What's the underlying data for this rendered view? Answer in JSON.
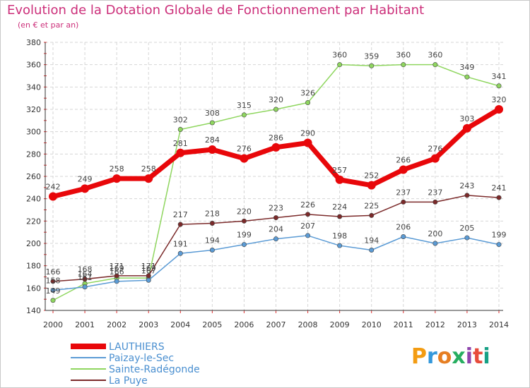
{
  "header": {
    "title": "Evolution de la Dotation Globale de Fonctionnement par Habitant",
    "subtitle": "(en € et par an)"
  },
  "logo": {
    "letters": [
      "P",
      "r",
      "o",
      "x",
      "i",
      "t",
      "i"
    ],
    "colors": [
      "#f39c12",
      "#3498db",
      "#e67e22",
      "#27ae60",
      "#8e44ad",
      "#e74c3c",
      "#16a085"
    ]
  },
  "chart_data": {
    "type": "line",
    "x": [
      "2000",
      "2001",
      "2002",
      "2003",
      "2004",
      "2005",
      "2006",
      "2007",
      "2008",
      "2009",
      "2010",
      "2011",
      "2012",
      "2013",
      "2014"
    ],
    "ylim": [
      140,
      380
    ],
    "yticks": [
      140,
      160,
      180,
      200,
      220,
      240,
      260,
      280,
      300,
      320,
      340,
      360,
      380
    ],
    "grid": true,
    "legend": "bottom-left",
    "series": [
      {
        "name": "LAUTHIERS",
        "color": "#e8070a",
        "values": [
          242,
          249,
          258,
          258,
          281,
          284,
          276,
          286,
          290,
          257,
          252,
          266,
          276,
          303,
          320
        ]
      },
      {
        "name": "Paizay-le-Sec",
        "color": "#5b9bd5",
        "values": [
          158,
          161,
          166,
          167,
          191,
          194,
          199,
          204,
          207,
          198,
          194,
          206,
          200,
          205,
          199
        ]
      },
      {
        "name": "Sainte-Radégonde",
        "color": "#8fd65f",
        "values": [
          149,
          164,
          169,
          169,
          302,
          308,
          315,
          320,
          326,
          360,
          359,
          360,
          360,
          349,
          341
        ]
      },
      {
        "name": "La Puye",
        "color": "#7b2a2a",
        "values": [
          166,
          168,
          171,
          171,
          217,
          218,
          220,
          223,
          226,
          224,
          225,
          237,
          237,
          243,
          241
        ]
      }
    ],
    "labels": {
      "LAUTHIERS": [
        "242",
        "249",
        "258",
        "258",
        "281",
        "284",
        "276",
        "286",
        "290",
        "257",
        "252",
        "266",
        "276",
        "303",
        "320"
      ],
      "Paizay-le-Sec": [
        "158",
        "161",
        "166",
        "167",
        "191",
        "194",
        "199",
        "204",
        "207",
        "198",
        "194",
        "206",
        "200",
        "205",
        "199"
      ],
      "Sainte-Radégonde": [
        "149",
        "164",
        "169",
        "169",
        "302",
        "308",
        "315",
        "320",
        "326",
        "360",
        "359",
        "360",
        "360",
        "349",
        "341"
      ],
      "La Puye": [
        "166",
        "168",
        "171",
        "171",
        "217",
        "218",
        "220",
        "223",
        "226",
        "224",
        "225",
        "237",
        "237",
        "243",
        "241"
      ]
    }
  }
}
